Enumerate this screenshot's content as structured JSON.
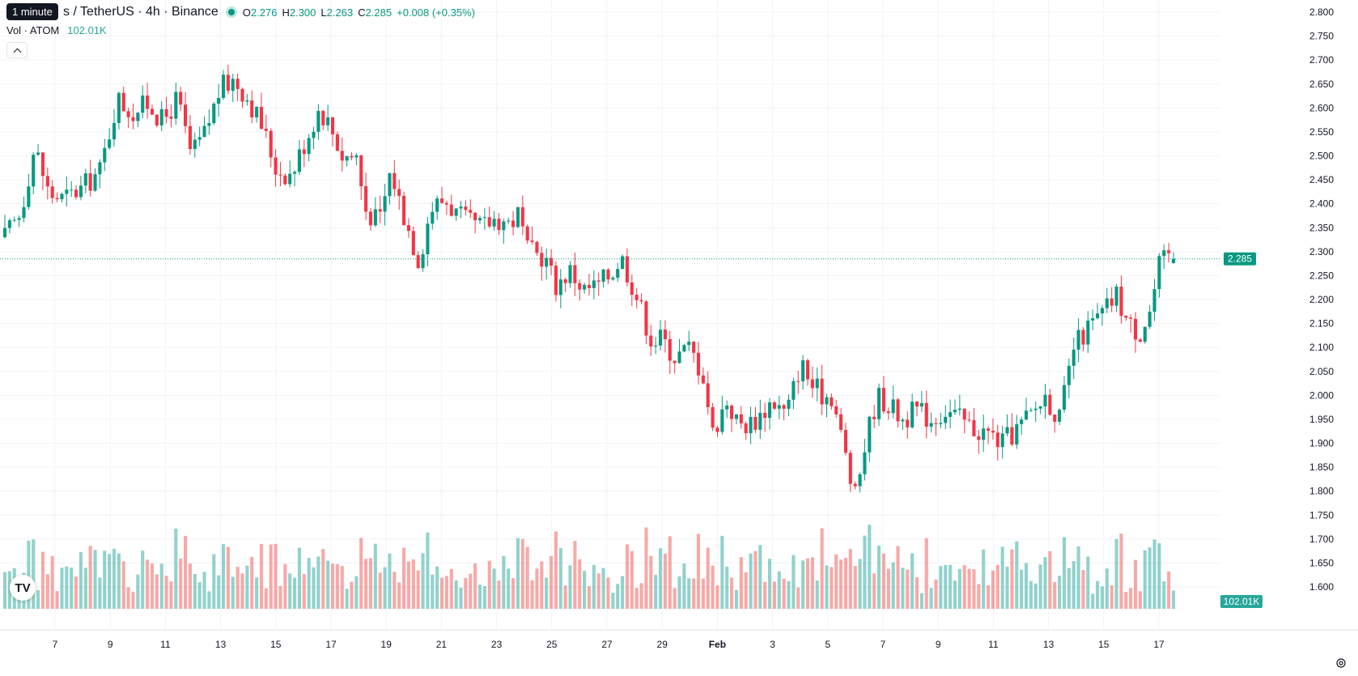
{
  "header": {
    "tooltip": "1 minute",
    "symbol_title": "s / TetherUS · 4h · Binance",
    "o_label": "O",
    "o_value": "2.276",
    "h_label": "H",
    "h_value": "2.300",
    "l_label": "L",
    "l_value": "2.263",
    "c_label": "C",
    "c_value": "2.285",
    "change": "+0.008 (+0.35%)",
    "volume_label": "Vol · ATOM",
    "volume_value": "102.01K"
  },
  "colors": {
    "up": "#089981",
    "down": "#f23645",
    "vol_up": "#26a69a",
    "vol_down": "#ef5350",
    "grid": "#f0f3fa",
    "text": "#131722"
  },
  "icons": {
    "logo": "tradingview-logo-icon",
    "settings": "gear-icon",
    "collapse": "chevron-up-icon",
    "live": "live-dot-icon"
  },
  "chart_data": {
    "type": "candlestick",
    "interval": "4h",
    "price_axis": {
      "ticks": [
        "2.800",
        "2.750",
        "2.700",
        "2.650",
        "2.600",
        "2.550",
        "2.500",
        "2.450",
        "2.400",
        "2.350",
        "2.300",
        "2.250",
        "2.200",
        "2.150",
        "2.100",
        "2.050",
        "2.000",
        "1.950",
        "1.900",
        "1.850",
        "1.800",
        "1.750",
        "1.700",
        "1.650",
        "1.600"
      ],
      "ylim": [
        1.573,
        2.825
      ]
    },
    "x_ticks": [
      "7",
      "9",
      "11",
      "13",
      "15",
      "17",
      "19",
      "21",
      "23",
      "25",
      "27",
      "29",
      "Feb",
      "3",
      "5",
      "7",
      "9",
      "11",
      "13",
      "15",
      "17"
    ],
    "last_price": {
      "value": 2.285,
      "label": "2.285"
    },
    "last_volume_label": "102.01K",
    "grid": true,
    "candles_per_day": 6,
    "day_range": [
      5.95,
      17.7
    ],
    "close_path": [
      [
        5.95,
        2.33
      ],
      [
        6.5,
        2.38
      ],
      [
        7.0,
        2.52
      ],
      [
        7.5,
        2.42
      ],
      [
        8.0,
        2.41
      ],
      [
        8.6,
        2.43
      ],
      [
        9.3,
        2.47
      ],
      [
        9.9,
        2.62
      ],
      [
        10.4,
        2.59
      ],
      [
        11.0,
        2.61
      ],
      [
        11.5,
        2.57
      ],
      [
        12.0,
        2.62
      ],
      [
        12.5,
        2.5
      ],
      [
        13.0,
        2.55
      ],
      [
        13.5,
        2.64
      ],
      [
        14.0,
        2.66
      ],
      [
        14.5,
        2.62
      ],
      [
        15.0,
        2.56
      ],
      [
        15.5,
        2.47
      ],
      [
        16.0,
        2.46
      ],
      [
        16.5,
        2.53
      ],
      [
        17.0,
        2.6
      ],
      [
        17.4,
        2.56
      ],
      [
        17.8,
        2.5
      ],
      [
        18.3,
        2.5
      ],
      [
        18.6,
        2.39
      ],
      [
        19.1,
        2.36
      ],
      [
        19.5,
        2.47
      ],
      [
        20.0,
        2.37
      ],
      [
        20.5,
        2.28
      ],
      [
        20.9,
        2.39
      ],
      [
        21.4,
        2.41
      ],
      [
        21.8,
        2.38
      ],
      [
        22.2,
        2.36
      ],
      [
        22.7,
        2.35
      ],
      [
        23.2,
        2.37
      ],
      [
        23.7,
        2.36
      ],
      [
        24.0,
        2.38
      ],
      [
        24.3,
        2.3
      ],
      [
        24.9,
        2.29
      ],
      [
        25.3,
        2.23
      ],
      [
        25.8,
        2.26
      ],
      [
        26.3,
        2.22
      ],
      [
        26.8,
        2.23
      ],
      [
        27.3,
        2.26
      ],
      [
        27.6,
        2.29
      ],
      [
        28.0,
        2.23
      ],
      [
        28.3,
        2.18
      ],
      [
        28.7,
        2.11
      ],
      [
        29.0,
        2.12
      ],
      [
        29.5,
        2.08
      ],
      [
        30.0,
        2.1
      ],
      [
        30.5,
        2.04
      ],
      [
        30.8,
        1.92
      ],
      [
        31.3,
        1.99
      ],
      [
        31.7,
        1.94
      ],
      [
        32.1,
        1.94
      ],
      [
        32.5,
        1.96
      ],
      [
        32.9,
        1.99
      ],
      [
        33.4,
        1.96
      ],
      [
        33.9,
        2.07
      ],
      [
        34.3,
        2.02
      ],
      [
        34.7,
        2.0
      ],
      [
        35.0,
        2.0
      ],
      [
        35.5,
        1.87
      ],
      [
        35.8,
        1.78
      ],
      [
        36.2,
        1.91
      ],
      [
        36.6,
        2.0
      ],
      [
        37.0,
        1.98
      ],
      [
        37.5,
        1.95
      ],
      [
        38.0,
        1.97
      ],
      [
        38.5,
        1.95
      ],
      [
        39.0,
        1.97
      ],
      [
        39.5,
        1.95
      ],
      [
        40.0,
        1.93
      ],
      [
        40.5,
        1.92
      ],
      [
        41.0,
        1.9
      ],
      [
        41.5,
        1.93
      ],
      [
        42.0,
        1.96
      ],
      [
        42.5,
        2.0
      ],
      [
        43.0,
        1.95
      ],
      [
        43.5,
        2.1
      ],
      [
        44.0,
        2.14
      ],
      [
        44.5,
        2.17
      ],
      [
        45.0,
        2.21
      ],
      [
        45.4,
        2.15
      ],
      [
        45.8,
        2.13
      ],
      [
        46.2,
        2.18
      ],
      [
        46.5,
        2.27
      ],
      [
        46.8,
        2.29
      ],
      [
        47.0,
        2.285
      ]
    ]
  }
}
